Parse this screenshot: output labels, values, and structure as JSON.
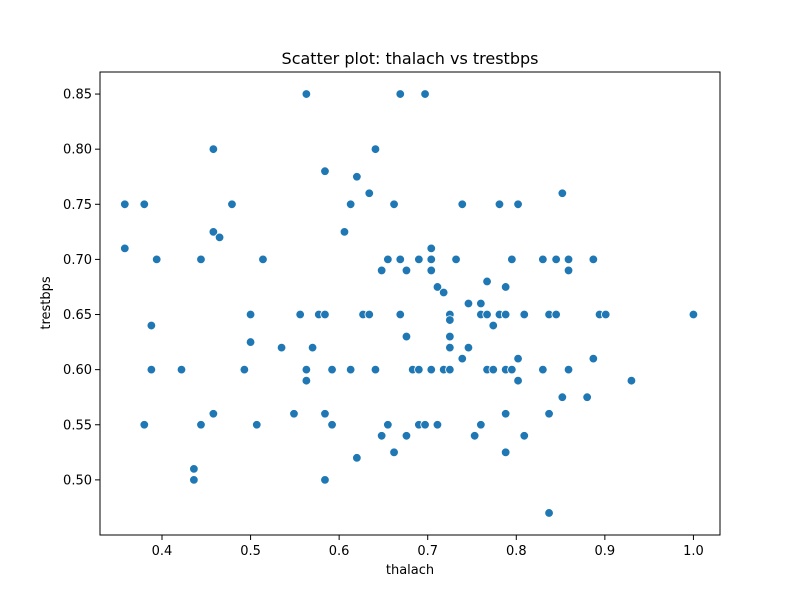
{
  "chart_data": {
    "type": "scatter",
    "title": "Scatter plot: thalach vs trestbps",
    "xlabel": "thalach",
    "ylabel": "trestbps",
    "xlim": [
      0.33,
      1.03
    ],
    "ylim": [
      0.45,
      0.87
    ],
    "xticks": [
      0.4,
      0.5,
      0.6,
      0.7,
      0.8,
      0.9,
      1.0
    ],
    "xtick_labels": [
      "0.4",
      "0.5",
      "0.6",
      "0.7",
      "0.8",
      "0.9",
      "1.0"
    ],
    "yticks": [
      0.5,
      0.55,
      0.6,
      0.65,
      0.7,
      0.75,
      0.8,
      0.85
    ],
    "ytick_labels": [
      "0.50",
      "0.55",
      "0.60",
      "0.65",
      "0.70",
      "0.75",
      "0.80",
      "0.85"
    ],
    "grid": false,
    "marker_color": "#1f77b4",
    "marker_edge_color": "#ffffff",
    "points": [
      [
        0.358,
        0.75
      ],
      [
        0.358,
        0.71
      ],
      [
        0.38,
        0.75
      ],
      [
        0.38,
        0.55
      ],
      [
        0.388,
        0.64
      ],
      [
        0.388,
        0.6
      ],
      [
        0.394,
        0.7
      ],
      [
        0.422,
        0.6
      ],
      [
        0.436,
        0.51
      ],
      [
        0.436,
        0.5
      ],
      [
        0.444,
        0.7
      ],
      [
        0.444,
        0.55
      ],
      [
        0.458,
        0.8
      ],
      [
        0.458,
        0.725
      ],
      [
        0.458,
        0.56
      ],
      [
        0.465,
        0.72
      ],
      [
        0.479,
        0.75
      ],
      [
        0.493,
        0.6
      ],
      [
        0.5,
        0.65
      ],
      [
        0.5,
        0.625
      ],
      [
        0.507,
        0.55
      ],
      [
        0.514,
        0.7
      ],
      [
        0.535,
        0.62
      ],
      [
        0.549,
        0.56
      ],
      [
        0.556,
        0.65
      ],
      [
        0.563,
        0.85
      ],
      [
        0.563,
        0.6
      ],
      [
        0.563,
        0.59
      ],
      [
        0.57,
        0.62
      ],
      [
        0.577,
        0.65
      ],
      [
        0.584,
        0.65
      ],
      [
        0.584,
        0.78
      ],
      [
        0.584,
        0.56
      ],
      [
        0.584,
        0.5
      ],
      [
        0.592,
        0.6
      ],
      [
        0.592,
        0.55
      ],
      [
        0.606,
        0.725
      ],
      [
        0.613,
        0.75
      ],
      [
        0.613,
        0.6
      ],
      [
        0.62,
        0.775
      ],
      [
        0.62,
        0.52
      ],
      [
        0.627,
        0.65
      ],
      [
        0.634,
        0.76
      ],
      [
        0.634,
        0.65
      ],
      [
        0.641,
        0.8
      ],
      [
        0.641,
        0.6
      ],
      [
        0.648,
        0.69
      ],
      [
        0.648,
        0.54
      ],
      [
        0.655,
        0.7
      ],
      [
        0.655,
        0.55
      ],
      [
        0.662,
        0.75
      ],
      [
        0.662,
        0.525
      ],
      [
        0.669,
        0.85
      ],
      [
        0.669,
        0.7
      ],
      [
        0.669,
        0.65
      ],
      [
        0.676,
        0.69
      ],
      [
        0.676,
        0.63
      ],
      [
        0.676,
        0.54
      ],
      [
        0.683,
        0.6
      ],
      [
        0.69,
        0.7
      ],
      [
        0.69,
        0.6
      ],
      [
        0.69,
        0.55
      ],
      [
        0.697,
        0.85
      ],
      [
        0.697,
        0.55
      ],
      [
        0.704,
        0.71
      ],
      [
        0.704,
        0.7
      ],
      [
        0.704,
        0.69
      ],
      [
        0.704,
        0.6
      ],
      [
        0.711,
        0.675
      ],
      [
        0.711,
        0.55
      ],
      [
        0.718,
        0.67
      ],
      [
        0.718,
        0.6
      ],
      [
        0.725,
        0.65
      ],
      [
        0.725,
        0.645
      ],
      [
        0.725,
        0.63
      ],
      [
        0.725,
        0.62
      ],
      [
        0.725,
        0.6
      ],
      [
        0.732,
        0.7
      ],
      [
        0.739,
        0.75
      ],
      [
        0.739,
        0.61
      ],
      [
        0.746,
        0.66
      ],
      [
        0.746,
        0.62
      ],
      [
        0.753,
        0.54
      ],
      [
        0.76,
        0.66
      ],
      [
        0.76,
        0.65
      ],
      [
        0.76,
        0.55
      ],
      [
        0.767,
        0.68
      ],
      [
        0.767,
        0.65
      ],
      [
        0.767,
        0.6
      ],
      [
        0.774,
        0.64
      ],
      [
        0.774,
        0.6
      ],
      [
        0.781,
        0.75
      ],
      [
        0.781,
        0.65
      ],
      [
        0.788,
        0.675
      ],
      [
        0.788,
        0.65
      ],
      [
        0.788,
        0.6
      ],
      [
        0.788,
        0.56
      ],
      [
        0.788,
        0.525
      ],
      [
        0.795,
        0.7
      ],
      [
        0.795,
        0.6
      ],
      [
        0.802,
        0.75
      ],
      [
        0.802,
        0.61
      ],
      [
        0.802,
        0.59
      ],
      [
        0.809,
        0.65
      ],
      [
        0.809,
        0.54
      ],
      [
        0.83,
        0.7
      ],
      [
        0.83,
        0.6
      ],
      [
        0.837,
        0.65
      ],
      [
        0.837,
        0.56
      ],
      [
        0.837,
        0.47
      ],
      [
        0.845,
        0.7
      ],
      [
        0.845,
        0.65
      ],
      [
        0.852,
        0.76
      ],
      [
        0.852,
        0.575
      ],
      [
        0.859,
        0.7
      ],
      [
        0.859,
        0.69
      ],
      [
        0.859,
        0.6
      ],
      [
        0.88,
        0.575
      ],
      [
        0.887,
        0.7
      ],
      [
        0.887,
        0.61
      ],
      [
        0.894,
        0.65
      ],
      [
        0.901,
        0.65
      ],
      [
        0.93,
        0.59
      ],
      [
        1.0,
        0.65
      ]
    ]
  }
}
